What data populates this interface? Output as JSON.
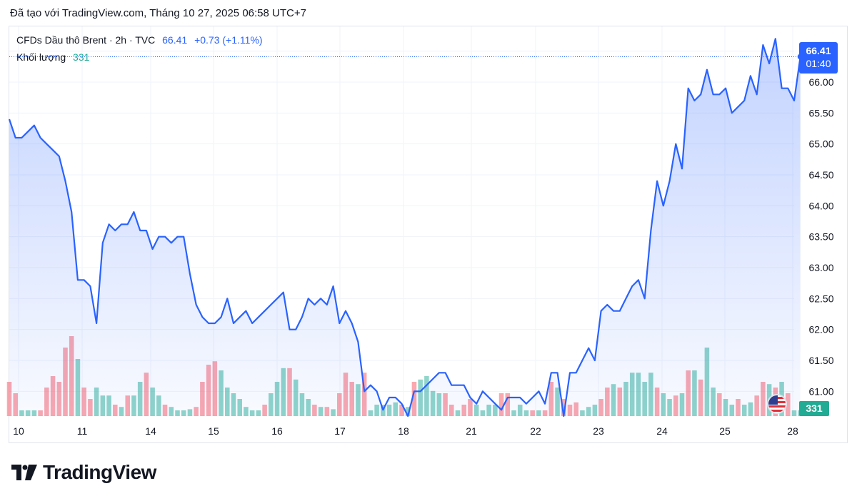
{
  "caption": "Đã tạo với TradingView.com, Tháng 10 27, 2025 06:58 UTC+7",
  "legend": {
    "symbol": "CFDs Dầu thô Brent · 2h · TVC",
    "last": "66.41",
    "change": "+0.73 (+1.11%)",
    "volume_label": "Khối lượng",
    "volume_value": "331"
  },
  "price_badge": {
    "price": "66.41",
    "countdown": "01:40"
  },
  "volume_badge": "331",
  "brand": "TradingView",
  "colors": {
    "line": "#2962ff",
    "up_volume": "#22ab94",
    "down_volume": "#f7525f",
    "grid": "#f0f3fa"
  },
  "chart_data": {
    "type": "line",
    "title": "CFDs Dầu thô Brent · 2h · TVC",
    "y_ticks": [
      "61.00",
      "61.50",
      "62.00",
      "62.50",
      "63.00",
      "63.50",
      "64.00",
      "64.50",
      "65.00",
      "65.50",
      "66.00",
      "66.50"
    ],
    "x_ticks": [
      "10",
      "11",
      "14",
      "15",
      "16",
      "17",
      "18",
      "21",
      "22",
      "23",
      "24",
      "25",
      "28"
    ],
    "ylim": [
      60.6,
      66.9
    ],
    "x_range": [
      0,
      126
    ],
    "series": [
      {
        "values": [
          65.4,
          65.1,
          65.1,
          65.2,
          65.3,
          65.1,
          65.0,
          64.9,
          64.8,
          64.4,
          63.9,
          62.8,
          62.8,
          62.7,
          62.1,
          63.4,
          63.7,
          63.6,
          63.7,
          63.7,
          63.9,
          63.6,
          63.6,
          63.3,
          63.5,
          63.5,
          63.4,
          63.5,
          63.5,
          62.9,
          62.4,
          62.2,
          62.1,
          62.1,
          62.2,
          62.5,
          62.1,
          62.2,
          62.3,
          62.1,
          62.2,
          62.3,
          62.4,
          62.5,
          62.6,
          62.0,
          62.0,
          62.2,
          62.5,
          62.4,
          62.5,
          62.4,
          62.7,
          62.1,
          62.3,
          62.1,
          61.8,
          61.0,
          61.1,
          61.0,
          60.7,
          60.9,
          60.9,
          60.8,
          60.6,
          61.0,
          61.0,
          61.1,
          61.2,
          61.3,
          61.3,
          61.1,
          61.1,
          61.1,
          60.9,
          60.8,
          61.0,
          60.9,
          60.8,
          60.7,
          60.9,
          60.9,
          60.9,
          60.8,
          60.9,
          61.0,
          60.8,
          61.3,
          61.3,
          60.6,
          61.3,
          61.3,
          61.5,
          61.7,
          61.5,
          62.3,
          62.4,
          62.3,
          62.3,
          62.5,
          62.7,
          62.8,
          62.5,
          63.6,
          64.4,
          64.0,
          64.4,
          65.0,
          64.6,
          65.9,
          65.7,
          65.8,
          66.2,
          65.8,
          65.8,
          65.9,
          65.5,
          65.6,
          65.7,
          66.1,
          65.8,
          66.6,
          66.3,
          66.7,
          65.9,
          65.9,
          65.7,
          66.41
        ]
      }
    ],
    "volume": {
      "values": [
        0.3,
        0.2,
        0.05,
        0.05,
        0.05,
        0.05,
        0.25,
        0.35,
        0.3,
        0.6,
        0.7,
        0.5,
        0.25,
        0.15,
        0.25,
        0.18,
        0.18,
        0.1,
        0.08,
        0.18,
        0.18,
        0.3,
        0.38,
        0.25,
        0.18,
        0.1,
        0.08,
        0.05,
        0.05,
        0.06,
        0.08,
        0.3,
        0.45,
        0.48,
        0.4,
        0.25,
        0.2,
        0.15,
        0.08,
        0.05,
        0.05,
        0.1,
        0.2,
        0.3,
        0.42,
        0.42,
        0.32,
        0.2,
        0.15,
        0.1,
        0.08,
        0.08,
        0.06,
        0.2,
        0.38,
        0.3,
        0.28,
        0.38,
        0.05,
        0.1,
        0.1,
        0.1,
        0.12,
        0.1,
        0.08,
        0.3,
        0.32,
        0.35,
        0.22,
        0.2,
        0.2,
        0.1,
        0.05,
        0.1,
        0.15,
        0.1,
        0.05,
        0.1,
        0.1,
        0.2,
        0.2,
        0.05,
        0.1,
        0.05,
        0.05,
        0.05,
        0.05,
        0.3,
        0.25,
        0.15,
        0.1,
        0.12,
        0.05,
        0.08,
        0.1,
        0.15,
        0.25,
        0.28,
        0.25,
        0.3,
        0.38,
        0.38,
        0.3,
        0.38,
        0.25,
        0.2,
        0.15,
        0.18,
        0.2,
        0.4,
        0.4,
        0.32,
        0.6,
        0.25,
        0.2,
        0.15,
        0.1,
        0.15,
        0.1,
        0.12,
        0.18,
        0.3,
        0.28,
        0.25,
        0.3,
        0.2,
        0.05,
        0.05
      ],
      "direction": [
        "d",
        "d",
        "u",
        "u",
        "u",
        "d",
        "d",
        "d",
        "d",
        "d",
        "d",
        "u",
        "d",
        "d",
        "u",
        "u",
        "u",
        "d",
        "u",
        "d",
        "u",
        "u",
        "d",
        "u",
        "u",
        "d",
        "u",
        "u",
        "u",
        "u",
        "d",
        "d",
        "d",
        "d",
        "u",
        "u",
        "u",
        "u",
        "u",
        "u",
        "u",
        "d",
        "u",
        "u",
        "u",
        "d",
        "u",
        "u",
        "u",
        "d",
        "u",
        "d",
        "u",
        "d",
        "d",
        "d",
        "u",
        "d",
        "u",
        "u",
        "u",
        "u",
        "u",
        "d",
        "u",
        "d",
        "u",
        "u",
        "u",
        "u",
        "d",
        "d",
        "u",
        "d",
        "d",
        "u",
        "u",
        "u",
        "u",
        "d",
        "d",
        "u",
        "u",
        "u",
        "d",
        "u",
        "d",
        "d",
        "u",
        "d",
        "d",
        "d",
        "u",
        "u",
        "u",
        "d",
        "d",
        "u",
        "d",
        "u",
        "u",
        "u",
        "u",
        "u",
        "d",
        "u",
        "u",
        "d",
        "u",
        "d",
        "u",
        "d",
        "u",
        "u",
        "d",
        "u",
        "u",
        "d",
        "u",
        "u",
        "d",
        "d",
        "u",
        "d",
        "u",
        "d",
        "u",
        "u"
      ]
    }
  }
}
